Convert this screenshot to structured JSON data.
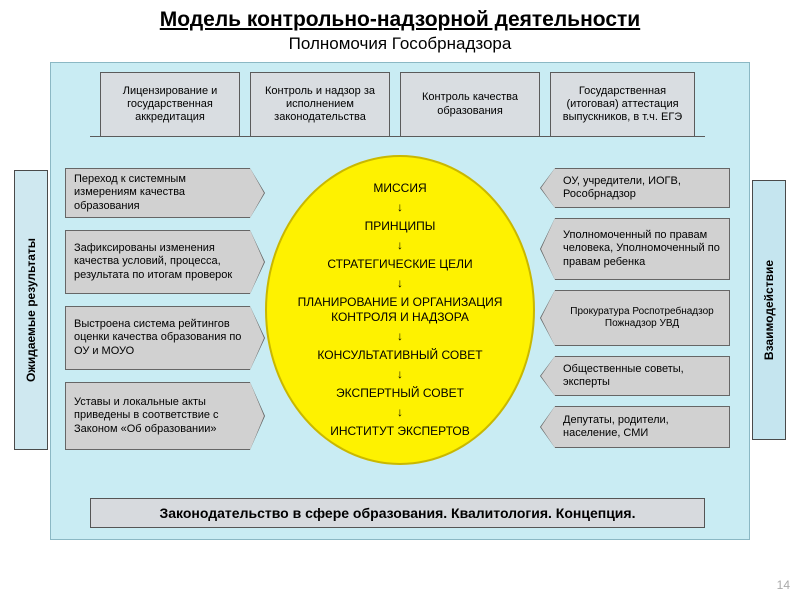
{
  "title": "Модель контрольно-надзорной деятельности",
  "subtitle": "Полномочия Гособрнадзора",
  "colors": {
    "bg_panel": "#c9ecf3",
    "tab_bg": "#d9dde1",
    "arrow_bg": "#d1d1d1",
    "circle_fill": "#fef200",
    "circle_border": "#c9b800",
    "left_panel": "#cfe8f0",
    "right_panel": "#c5e5ef",
    "footer_bg": "#d7dade"
  },
  "tabs": [
    "Лицензирование и государственная аккредитация",
    "Контроль и надзор за исполнением законодательства",
    "Контроль качества образования",
    "Государственная (итоговая) аттестация выпускников, в т.ч. ЕГЭ"
  ],
  "left_arrows": [
    "Переход к системным измерениям качества образования",
    "Зафиксированы изменения качества условий, процесса, результата по итогам проверок",
    "Выстроена система рейтингов оценки качества образования по ОУ и МОУО",
    "Уставы и локальные акты приведены в соответствие с Законом «Об образовании»"
  ],
  "right_arrows": [
    "ОУ, учредители, ИОГВ, Рособрнадзор",
    "Уполномоченный по правам человека, Уполномоченный по правам ребенка",
    "Прокуратура Роспотребнадзор Пожнадзор УВД",
    "Общественные советы, эксперты",
    "Депутаты, родители, население, СМИ"
  ],
  "circle_items": [
    "МИССИЯ",
    "ПРИНЦИПЫ",
    "СТРАТЕГИЧЕСКИЕ ЦЕЛИ",
    "ПЛАНИРОВАНИЕ И ОРГАНИЗАЦИЯ КОНТРОЛЯ И НАДЗОРА",
    "КОНСУЛЬТАТИВНЫЙ СОВЕТ",
    "ЭКСПЕРТНЫЙ СОВЕТ",
    "ИНСТИТУТ ЭКСПЕРТОВ"
  ],
  "left_vlabel": "Ожидаемые результаты",
  "right_vlabel": "Взаимодействие",
  "footer": "Законодательство в сфере образования. Квалитология. Концепция.",
  "pagenum": "14"
}
